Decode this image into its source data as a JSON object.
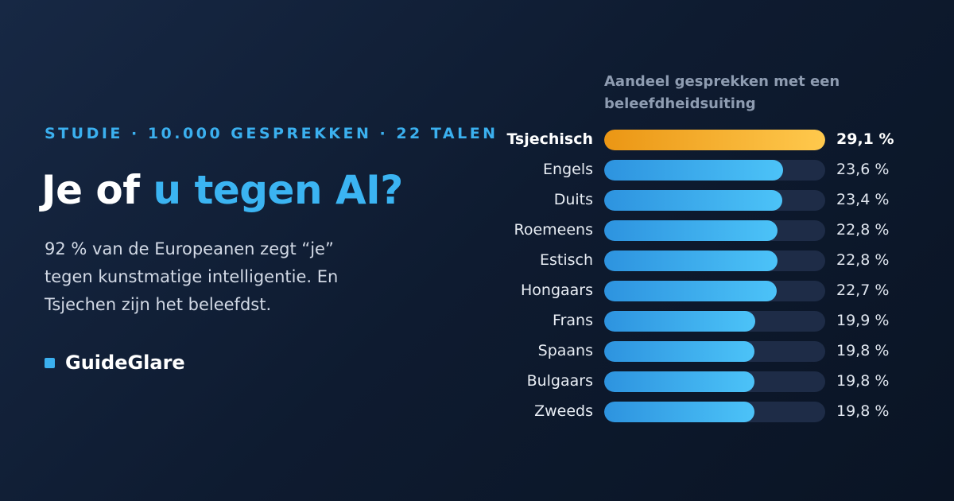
{
  "header": {
    "eyebrow": "STUDIE · 10.000 GESPREKKEN · 22 TALEN",
    "headline_part1": "Je of ",
    "headline_part2": "u tegen AI?",
    "description": "92 % van de Europeanen zegt “je” tegen kunstmatige intelligentie. En Tsjechen zijn het beleefdst.",
    "brand": "GuideGlare"
  },
  "colors": {
    "accent_blue": "#3bb4f2",
    "highlight_orange": "#f5a623",
    "bar_track": "#1e2c47",
    "background": "#0e1b30"
  },
  "chart_data": {
    "type": "bar",
    "orientation": "horizontal",
    "title": "Aandeel gesprekken met een beleefdheidsuiting",
    "xlim": [
      0,
      29.1
    ],
    "highlight_index": 0,
    "categories": [
      "Tsjechisch",
      "Engels",
      "Duits",
      "Roemeens",
      "Estisch",
      "Hongaars",
      "Frans",
      "Spaans",
      "Bulgaars",
      "Zweeds"
    ],
    "values": [
      29.1,
      23.6,
      23.4,
      22.8,
      22.8,
      22.7,
      19.9,
      19.8,
      19.8,
      19.8
    ],
    "value_labels": [
      "29,1 %",
      "23,6 %",
      "23,4 %",
      "22,8 %",
      "22,8 %",
      "22,7 %",
      "19,9 %",
      "19,8 %",
      "19,8 %",
      "19,8 %"
    ]
  }
}
